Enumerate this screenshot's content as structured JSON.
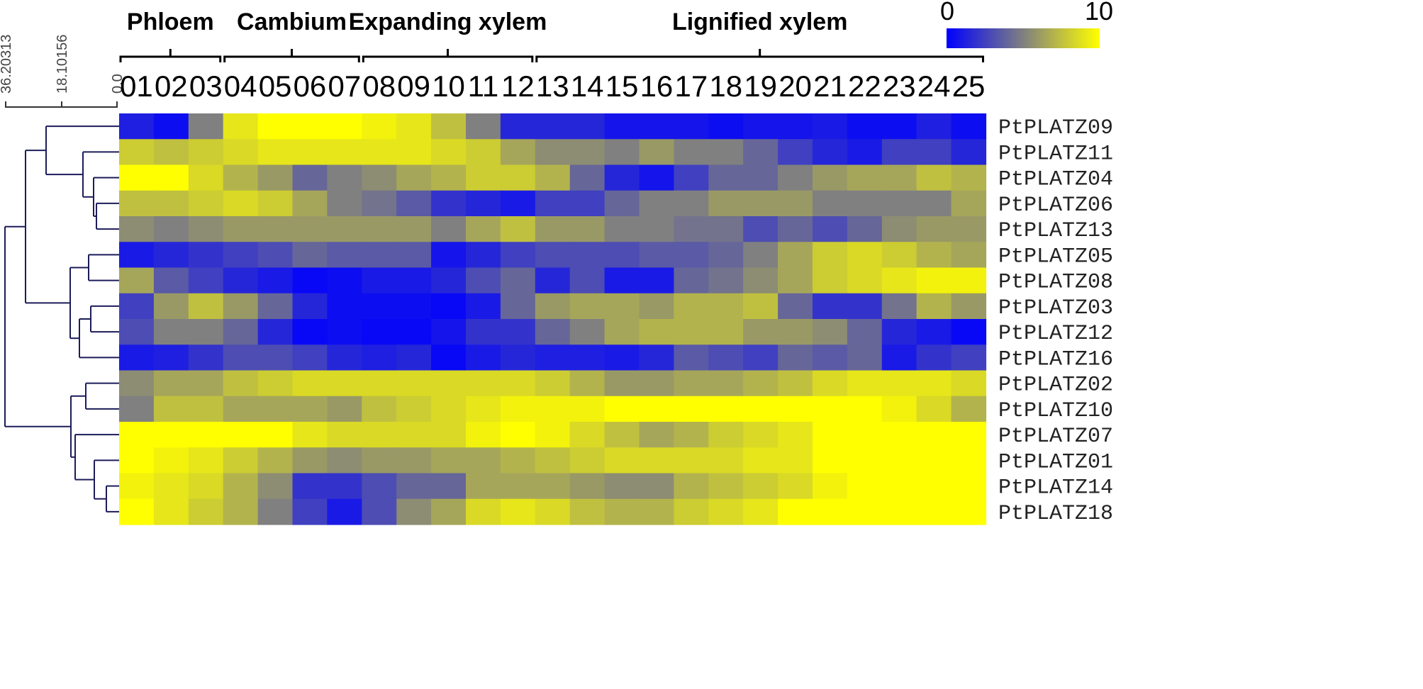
{
  "chart_data": {
    "type": "heatmap",
    "color_scale": {
      "min": 0,
      "max": 10,
      "min_label": "0",
      "max_label": "10",
      "colors": [
        "#0000ff",
        "#808080",
        "#ffff00"
      ]
    },
    "column_groups": [
      {
        "label": "Phloem",
        "columns": [
          "01",
          "02",
          "03"
        ]
      },
      {
        "label": "Cambium",
        "columns": [
          "04",
          "05",
          "06",
          "07"
        ]
      },
      {
        "label": "Expanding xylem",
        "columns": [
          "08",
          "09",
          "10",
          "11",
          "12"
        ]
      },
      {
        "label": "Lignified xylem",
        "columns": [
          "13",
          "14",
          "15",
          "16",
          "17",
          "18",
          "19",
          "20",
          "21",
          "22",
          "23",
          "24",
          "25"
        ]
      }
    ],
    "columns": [
      "01",
      "02",
      "03",
      "04",
      "05",
      "06",
      "07",
      "08",
      "09",
      "10",
      "11",
      "12",
      "13",
      "14",
      "15",
      "16",
      "17",
      "18",
      "19",
      "20",
      "21",
      "22",
      "23",
      "24",
      "25"
    ],
    "rows": [
      "PtPLATZ09",
      "PtPLATZ11",
      "PtPLATZ04",
      "PtPLATZ06",
      "PtPLATZ13",
      "PtPLATZ05",
      "PtPLATZ08",
      "PtPLATZ03",
      "PtPLATZ12",
      "PtPLATZ16",
      "PtPLATZ02",
      "PtPLATZ10",
      "PtPLATZ07",
      "PtPLATZ01",
      "PtPLATZ14",
      "PtPLATZ18"
    ],
    "values": [
      [
        1.2,
        0.5,
        5.0,
        9.0,
        10.0,
        10.0,
        10.0,
        9.5,
        9.0,
        7.5,
        5.0,
        1.5,
        1.5,
        1.5,
        0.8,
        0.8,
        0.8,
        0.5,
        0.8,
        0.8,
        1.0,
        0.5,
        0.5,
        1.2,
        0.5
      ],
      [
        8.0,
        7.5,
        8.0,
        8.5,
        9.0,
        9.0,
        9.0,
        9.0,
        9.0,
        8.5,
        8.0,
        6.5,
        5.5,
        5.5,
        5.0,
        6.0,
        5.0,
        5.0,
        4.0,
        2.5,
        1.5,
        1.0,
        2.5,
        2.5,
        1.5
      ],
      [
        10.0,
        10.0,
        8.5,
        7.0,
        6.0,
        4.0,
        5.0,
        5.5,
        6.5,
        7.0,
        8.0,
        8.0,
        7.0,
        4.0,
        1.5,
        0.8,
        2.5,
        4.0,
        4.0,
        5.0,
        6.0,
        6.5,
        6.5,
        7.5,
        7.0
      ],
      [
        7.5,
        7.5,
        8.0,
        8.5,
        8.0,
        6.5,
        5.0,
        4.5,
        3.5,
        2.0,
        1.5,
        1.0,
        2.5,
        2.5,
        4.0,
        5.0,
        5.0,
        6.0,
        6.0,
        6.0,
        5.0,
        5.0,
        5.0,
        5.0,
        6.5
      ],
      [
        5.5,
        5.0,
        5.5,
        6.0,
        6.0,
        6.0,
        6.0,
        6.0,
        6.0,
        5.0,
        6.5,
        7.5,
        6.0,
        6.0,
        5.0,
        5.0,
        4.5,
        4.5,
        3.0,
        4.0,
        3.0,
        4.0,
        5.5,
        6.0,
        6.0
      ],
      [
        1.0,
        1.5,
        2.0,
        2.5,
        3.0,
        4.0,
        3.5,
        3.5,
        3.5,
        0.8,
        1.5,
        2.5,
        3.0,
        3.0,
        3.0,
        3.5,
        3.5,
        4.0,
        5.0,
        6.5,
        8.0,
        8.5,
        8.0,
        7.0,
        6.5
      ],
      [
        6.5,
        3.5,
        2.5,
        1.5,
        1.0,
        0.3,
        0.5,
        1.0,
        1.0,
        1.5,
        3.0,
        4.0,
        1.5,
        3.0,
        1.0,
        1.0,
        4.0,
        4.5,
        5.5,
        6.5,
        8.0,
        8.5,
        9.0,
        9.5,
        9.5
      ],
      [
        2.5,
        6.0,
        7.5,
        6.0,
        4.0,
        1.5,
        0.5,
        0.5,
        0.5,
        0.3,
        1.0,
        4.0,
        6.0,
        6.5,
        6.5,
        6.0,
        7.0,
        7.0,
        7.5,
        4.0,
        2.0,
        2.0,
        4.5,
        7.0,
        6.0
      ],
      [
        3.0,
        5.0,
        5.0,
        4.0,
        1.5,
        0.3,
        0.5,
        0.3,
        0.3,
        0.8,
        2.0,
        2.0,
        4.0,
        5.0,
        6.5,
        7.0,
        7.0,
        7.0,
        6.0,
        6.0,
        5.5,
        4.0,
        1.5,
        1.0,
        0.3
      ],
      [
        1.0,
        1.2,
        2.0,
        3.0,
        3.0,
        2.5,
        1.5,
        1.2,
        1.5,
        0.3,
        1.0,
        1.5,
        1.2,
        1.2,
        1.0,
        1.5,
        3.5,
        3.0,
        2.5,
        4.0,
        3.5,
        4.0,
        1.0,
        2.0,
        2.5
      ],
      [
        5.5,
        6.5,
        6.5,
        7.5,
        8.0,
        8.5,
        8.5,
        8.5,
        8.5,
        8.5,
        8.5,
        8.5,
        8.0,
        7.0,
        6.0,
        6.0,
        6.5,
        6.5,
        7.0,
        7.5,
        8.5,
        9.0,
        9.0,
        9.0,
        8.5
      ],
      [
        5.0,
        7.5,
        7.5,
        6.5,
        6.5,
        6.5,
        6.0,
        7.5,
        8.0,
        8.5,
        9.0,
        9.5,
        9.5,
        9.5,
        10.0,
        10.0,
        10.0,
        10.0,
        10.0,
        10.0,
        10.0,
        10.0,
        9.5,
        8.5,
        7.0
      ],
      [
        10.0,
        10.0,
        10.0,
        10.0,
        10.0,
        9.0,
        8.5,
        8.5,
        8.5,
        8.5,
        9.5,
        10.0,
        9.5,
        8.5,
        7.5,
        6.5,
        7.0,
        8.0,
        8.5,
        9.0,
        10.0,
        10.0,
        10.0,
        10.0,
        10.0
      ],
      [
        10.0,
        9.5,
        9.0,
        8.0,
        7.0,
        6.0,
        5.5,
        6.0,
        6.0,
        6.5,
        6.5,
        7.0,
        7.5,
        8.0,
        8.5,
        8.5,
        8.5,
        8.5,
        9.0,
        9.0,
        10.0,
        10.0,
        10.0,
        10.0,
        10.0
      ],
      [
        9.5,
        9.0,
        8.5,
        7.0,
        5.5,
        2.0,
        2.0,
        3.0,
        4.0,
        4.0,
        6.5,
        6.5,
        6.5,
        6.0,
        5.5,
        5.5,
        7.0,
        7.5,
        8.0,
        8.5,
        9.5,
        10.0,
        10.0,
        10.0,
        10.0
      ],
      [
        10.0,
        9.0,
        8.0,
        7.0,
        5.0,
        2.5,
        1.0,
        3.0,
        5.5,
        6.5,
        8.5,
        9.0,
        8.5,
        7.5,
        7.0,
        7.0,
        8.0,
        8.5,
        9.0,
        10.0,
        10.0,
        10.0,
        10.0,
        10.0,
        10.0
      ]
    ],
    "dendrogram": {
      "scale_ticks": [
        "36.20313",
        "18.10156",
        "0.0"
      ]
    }
  }
}
